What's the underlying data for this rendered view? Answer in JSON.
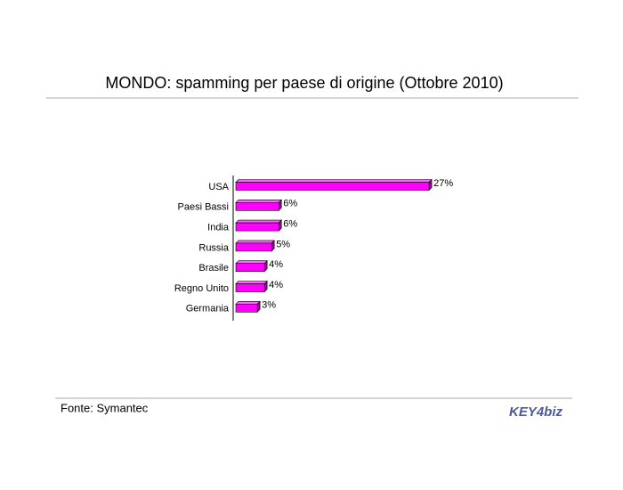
{
  "chart_data": {
    "type": "bar",
    "orientation": "horizontal",
    "title": "MONDO: spamming per paese di origine (Ottobre 2010)",
    "categories": [
      "USA",
      "Paesi Bassi",
      "India",
      "Russia",
      "Brasile",
      "Regno Unito",
      "Germania"
    ],
    "values": [
      27,
      6,
      6,
      5,
      4,
      4,
      3
    ],
    "value_labels": [
      "27%",
      "6%",
      "6%",
      "5%",
      "4%",
      "4%",
      "3%"
    ],
    "color": "#ff00ff"
  },
  "footer": {
    "source": "Fonte: Symantec",
    "logo": "KEY4biz"
  }
}
